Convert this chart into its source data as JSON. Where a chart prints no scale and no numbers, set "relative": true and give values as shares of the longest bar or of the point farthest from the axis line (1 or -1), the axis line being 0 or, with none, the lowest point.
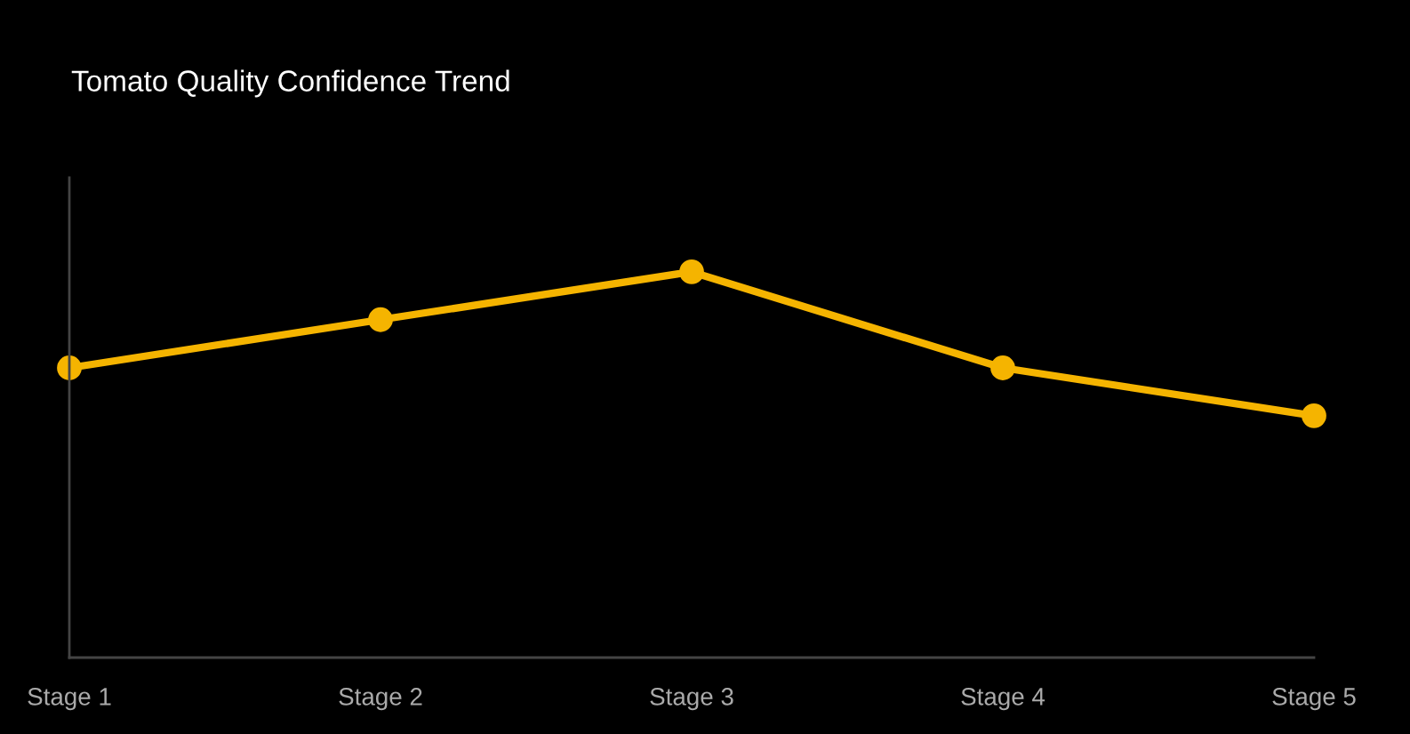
{
  "chart_data": {
    "type": "line",
    "title": "Tomato Quality Confidence Trend",
    "relative": true,
    "categories": [
      "Stage 1",
      "Stage 2",
      "Stage 3",
      "Stage 4",
      "Stage 5"
    ],
    "series": [
      {
        "color": "#f5b400",
        "values": [
          0.751,
          0.876,
          1,
          0.751,
          0.627
        ]
      }
    ],
    "marker": "circle",
    "line_style": "solid",
    "grid": false
  }
}
